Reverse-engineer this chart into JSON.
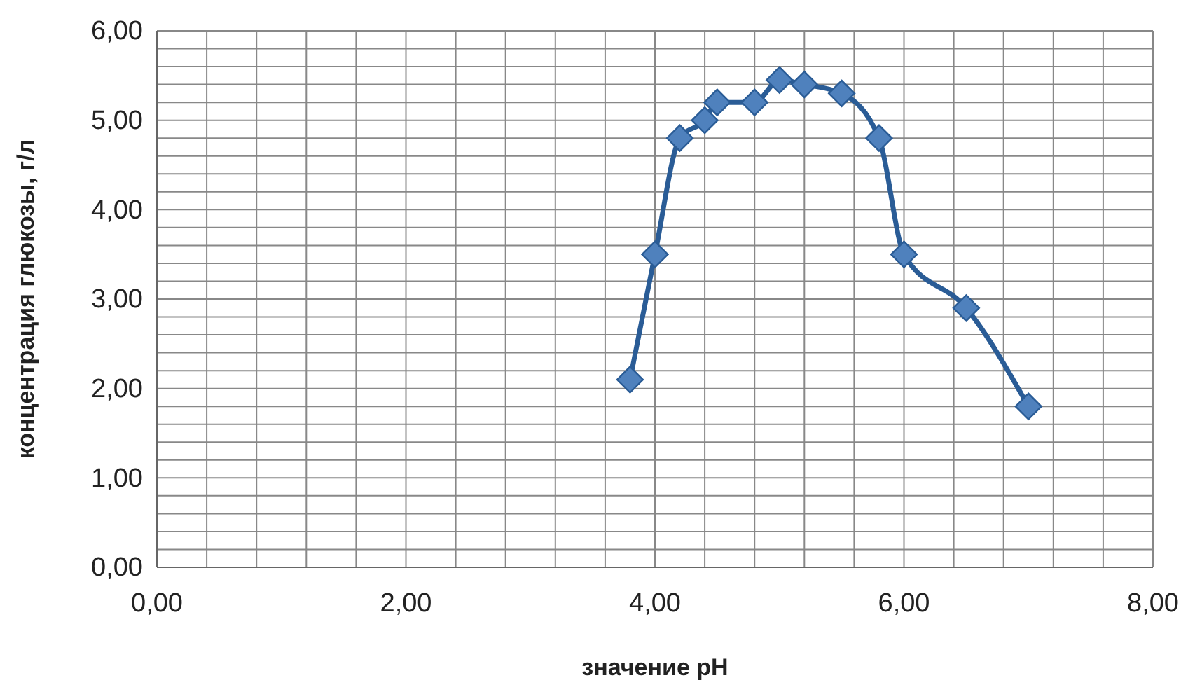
{
  "chart_data": {
    "type": "line",
    "xlabel": "значение pH",
    "ylabel": "концентрация глюкозы, г/л",
    "x": [
      3.8,
      4.0,
      4.2,
      4.4,
      4.5,
      4.8,
      5.0,
      5.2,
      5.5,
      5.8,
      6.0,
      6.5,
      7.0
    ],
    "series": [
      {
        "color": "#2a5c96",
        "values": [
          2.1,
          3.5,
          4.8,
          5.0,
          5.2,
          5.2,
          5.45,
          5.4,
          5.3,
          4.8,
          3.5,
          2.9,
          1.8
        ]
      }
    ],
    "marker": "diamond",
    "grid": true,
    "xlim": [
      0,
      8
    ],
    "ylim": [
      0,
      6
    ],
    "xticks": [
      {
        "value": 0,
        "label": "0,00"
      },
      {
        "value": 0.4,
        "label": null
      },
      {
        "value": 0.8,
        "label": null
      },
      {
        "value": 1.2,
        "label": null
      },
      {
        "value": 1.6,
        "label": null
      },
      {
        "value": 2,
        "label": "2,00"
      },
      {
        "value": 2.4,
        "label": null
      },
      {
        "value": 2.8,
        "label": null
      },
      {
        "value": 3.2,
        "label": null
      },
      {
        "value": 3.6,
        "label": null
      },
      {
        "value": 4,
        "label": "4,00"
      },
      {
        "value": 4.4,
        "label": null
      },
      {
        "value": 4.8,
        "label": null
      },
      {
        "value": 5.2,
        "label": null
      },
      {
        "value": 5.6,
        "label": null
      },
      {
        "value": 6,
        "label": "6,00"
      },
      {
        "value": 6.4,
        "label": null
      },
      {
        "value": 6.8,
        "label": null
      },
      {
        "value": 7.2,
        "label": null
      },
      {
        "value": 7.6,
        "label": null
      },
      {
        "value": 8,
        "label": "8,00"
      }
    ],
    "yticks": [
      {
        "value": 0,
        "label": "0,00"
      },
      {
        "value": 0.2,
        "label": null
      },
      {
        "value": 0.4,
        "label": null
      },
      {
        "value": 0.6,
        "label": null
      },
      {
        "value": 0.8,
        "label": null
      },
      {
        "value": 1,
        "label": "1,00"
      },
      {
        "value": 1.2,
        "label": null
      },
      {
        "value": 1.4,
        "label": null
      },
      {
        "value": 1.6,
        "label": null
      },
      {
        "value": 1.8,
        "label": null
      },
      {
        "value": 2,
        "label": "2,00"
      },
      {
        "value": 2.2,
        "label": null
      },
      {
        "value": 2.4,
        "label": null
      },
      {
        "value": 2.6,
        "label": null
      },
      {
        "value": 2.8,
        "label": null
      },
      {
        "value": 3,
        "label": "3,00"
      },
      {
        "value": 3.2,
        "label": null
      },
      {
        "value": 3.4,
        "label": null
      },
      {
        "value": 3.6,
        "label": null
      },
      {
        "value": 3.8,
        "label": null
      },
      {
        "value": 4,
        "label": "4,00"
      },
      {
        "value": 4.2,
        "label": null
      },
      {
        "value": 4.4,
        "label": null
      },
      {
        "value": 4.6,
        "label": null
      },
      {
        "value": 4.8,
        "label": null
      },
      {
        "value": 5,
        "label": "5,00"
      },
      {
        "value": 5.2,
        "label": null
      },
      {
        "value": 5.4,
        "label": null
      },
      {
        "value": 5.6,
        "label": null
      },
      {
        "value": 5.8,
        "label": null
      },
      {
        "value": 6,
        "label": "6,00"
      }
    ]
  }
}
